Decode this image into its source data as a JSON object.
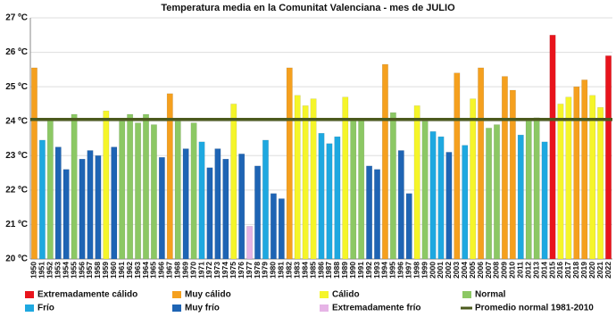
{
  "chart_data": {
    "type": "bar",
    "title": "Temperatura media en la Comunitat Valenciana - mes de JULIO",
    "categories": [
      "1950",
      "1951",
      "1952",
      "1953",
      "1954",
      "1955",
      "1956",
      "1957",
      "1958",
      "1959",
      "1960",
      "1961",
      "1962",
      "1963",
      "1964",
      "1965",
      "1966",
      "1967",
      "1968",
      "1969",
      "1970",
      "1971",
      "1972",
      "1973",
      "1974",
      "1975",
      "1976",
      "1977",
      "1978",
      "1979",
      "1980",
      "1981",
      "1982",
      "1983",
      "1984",
      "1985",
      "1986",
      "1987",
      "1988",
      "1989",
      "1990",
      "1991",
      "1992",
      "1993",
      "1994",
      "1995",
      "1996",
      "1997",
      "1998",
      "1999",
      "2000",
      "2001",
      "2002",
      "2003",
      "2004",
      "2005",
      "2006",
      "2007",
      "2008",
      "2009",
      "2010",
      "2011",
      "2012",
      "2013",
      "2014",
      "2015",
      "2016",
      "2017",
      "2018",
      "2019",
      "2020",
      "2021",
      "2022"
    ],
    "values": [
      25.55,
      23.45,
      24.05,
      23.25,
      22.6,
      24.2,
      22.9,
      23.15,
      23.0,
      24.3,
      23.25,
      24.0,
      24.2,
      23.95,
      24.2,
      23.9,
      22.95,
      24.8,
      24.0,
      23.2,
      23.95,
      23.4,
      22.65,
      23.2,
      22.9,
      24.5,
      23.05,
      20.95,
      22.7,
      23.45,
      21.9,
      21.75,
      25.55,
      24.75,
      24.45,
      24.65,
      23.65,
      23.35,
      23.55,
      24.7,
      24.05,
      24.05,
      22.7,
      22.6,
      25.65,
      24.25,
      23.15,
      21.9,
      24.45,
      24.0,
      23.7,
      23.55,
      23.1,
      25.4,
      23.3,
      24.65,
      25.55,
      23.8,
      23.9,
      25.3,
      24.9,
      23.6,
      24.05,
      24.1,
      23.4,
      26.5,
      24.5,
      24.7,
      25.0,
      25.2,
      24.75,
      24.4,
      25.9
    ],
    "colors": [
      "#f5a01e",
      "#1ea8e0",
      "#8cc864",
      "#1e64b4",
      "#1e64b4",
      "#8cc864",
      "#1e64b4",
      "#1e64b4",
      "#1e64b4",
      "#f5f52a",
      "#1e64b4",
      "#8cc864",
      "#8cc864",
      "#8cc864",
      "#8cc864",
      "#8cc864",
      "#1e64b4",
      "#f5a01e",
      "#8cc864",
      "#1e64b4",
      "#8cc864",
      "#1ea8e0",
      "#1e64b4",
      "#1e64b4",
      "#1e64b4",
      "#f5f52a",
      "#1e64b4",
      "#e6b4e6",
      "#1e64b4",
      "#1ea8e0",
      "#1e64b4",
      "#1e64b4",
      "#f5a01e",
      "#f5f52a",
      "#f5f52a",
      "#f5f52a",
      "#1ea8e0",
      "#1ea8e0",
      "#1ea8e0",
      "#f5f52a",
      "#8cc864",
      "#8cc864",
      "#1e64b4",
      "#1e64b4",
      "#f5a01e",
      "#8cc864",
      "#1e64b4",
      "#1e64b4",
      "#f5f52a",
      "#8cc864",
      "#1ea8e0",
      "#1ea8e0",
      "#1e64b4",
      "#f5a01e",
      "#1ea8e0",
      "#f5f52a",
      "#f5a01e",
      "#8cc864",
      "#8cc864",
      "#f5a01e",
      "#f5a01e",
      "#1ea8e0",
      "#8cc864",
      "#8cc864",
      "#1ea8e0",
      "#e8141c",
      "#f5f52a",
      "#f5f52a",
      "#f5a01e",
      "#f5a01e",
      "#f5f52a",
      "#f5f52a",
      "#e8141c"
    ],
    "legend": [
      {
        "name": "Extremadamente cálido",
        "color": "#e8141c"
      },
      {
        "name": "Muy cálido",
        "color": "#f5a01e"
      },
      {
        "name": "Cálido",
        "color": "#f5f52a"
      },
      {
        "name": "Normal",
        "color": "#8cc864"
      },
      {
        "name": "Frío",
        "color": "#1ea8e0"
      },
      {
        "name": "Muy frío",
        "color": "#1e64b4"
      },
      {
        "name": "Extremadamente frío",
        "color": "#e6b4e6"
      }
    ],
    "reference": {
      "name": "Promedio normal 1981-2010",
      "value": 24.05,
      "color": "#4b5a1e"
    },
    "ylim": [
      20,
      27
    ],
    "yticks": [
      {
        "value": 20,
        "label": "20 ºC"
      },
      {
        "value": 21,
        "label": "21 ºC"
      },
      {
        "value": 22,
        "label": "22 ºC"
      },
      {
        "value": 23,
        "label": "23 ºC"
      },
      {
        "value": 24,
        "label": "24 ºC"
      },
      {
        "value": 25,
        "label": "25 ºC"
      },
      {
        "value": 26,
        "label": "26 ºC"
      },
      {
        "value": 27,
        "label": "27 ºC"
      }
    ],
    "grid": true
  }
}
